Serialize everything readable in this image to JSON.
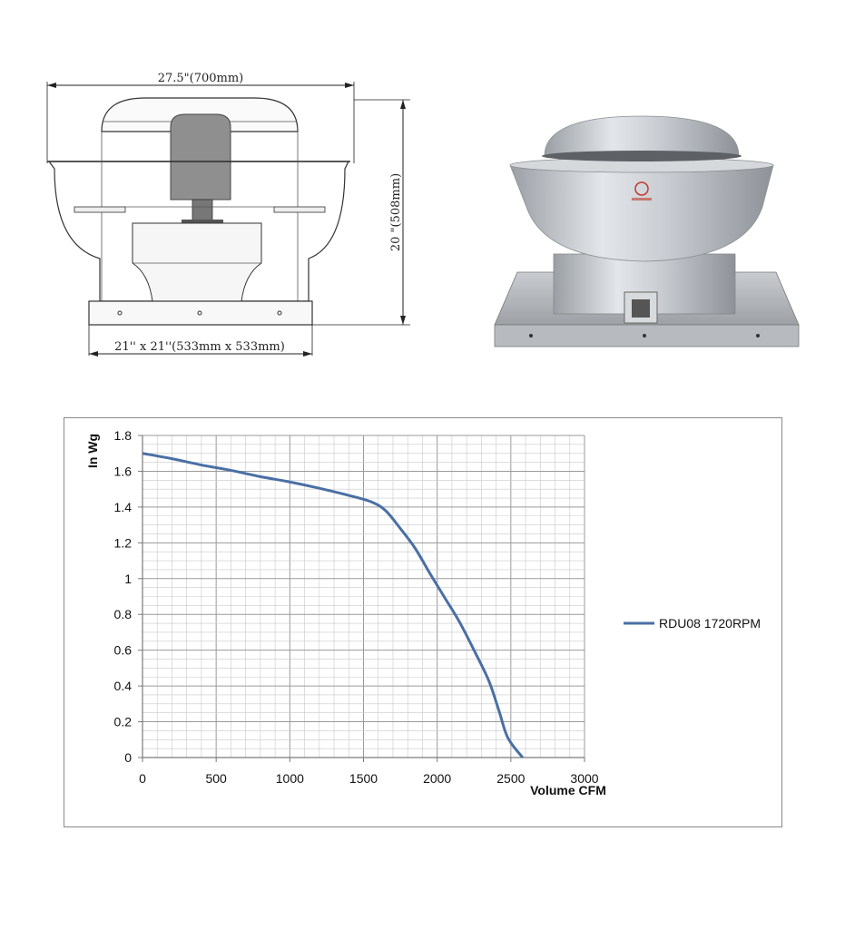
{
  "drawing": {
    "width_label": "27.5\"(700mm)",
    "height_label": "20 \"(508mm)",
    "base_label": "21'' x 21''(533mm x 533mm)"
  },
  "chart_data": {
    "type": "line",
    "title": "",
    "xlabel": "Volume CFM",
    "ylabel": "In Wg",
    "xlim": [
      0,
      3000
    ],
    "ylim": [
      0,
      1.8
    ],
    "x_ticks": [
      "0",
      "500",
      "1000",
      "1500",
      "2000",
      "2500",
      "3000"
    ],
    "y_ticks": [
      "0",
      "0.2",
      "0.4",
      "0.6",
      "0.8",
      "1",
      "1.2",
      "1.4",
      "1.6",
      "1.8"
    ],
    "x_tick_values": [
      0,
      500,
      1000,
      1500,
      2000,
      2500,
      3000
    ],
    "y_tick_values": [
      0,
      0.2,
      0.4,
      0.6,
      0.8,
      1,
      1.2,
      1.4,
      1.6,
      1.8
    ],
    "x_minor_step": 100,
    "y_minor_step": 0.05,
    "grid": true,
    "legend_position": "right",
    "series": [
      {
        "name": "RDU08 1720RPM",
        "color": "#4a6fa5",
        "points": [
          [
            0,
            1.7
          ],
          [
            200,
            1.67
          ],
          [
            400,
            1.635
          ],
          [
            600,
            1.605
          ],
          [
            800,
            1.57
          ],
          [
            1000,
            1.54
          ],
          [
            1200,
            1.505
          ],
          [
            1400,
            1.465
          ],
          [
            1550,
            1.43
          ],
          [
            1650,
            1.38
          ],
          [
            1750,
            1.28
          ],
          [
            1850,
            1.17
          ],
          [
            1950,
            1.03
          ],
          [
            2050,
            0.895
          ],
          [
            2150,
            0.76
          ],
          [
            2250,
            0.6
          ],
          [
            2350,
            0.43
          ],
          [
            2420,
            0.26
          ],
          [
            2480,
            0.11
          ],
          [
            2580,
            0.0
          ]
        ]
      }
    ]
  }
}
